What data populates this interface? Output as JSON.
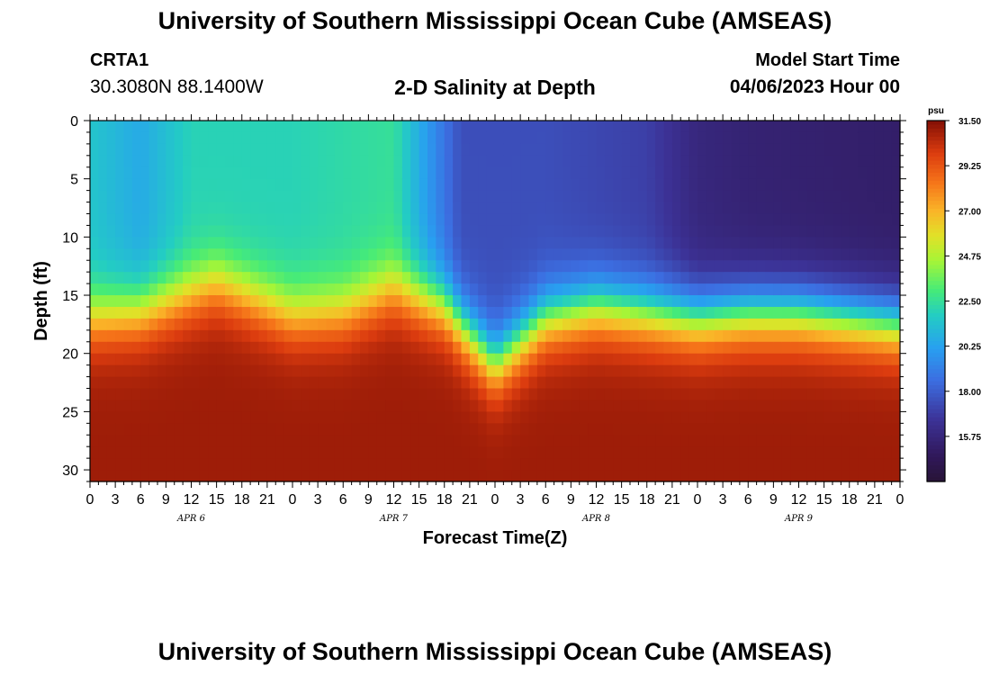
{
  "header": {
    "title": "University of Southern Mississippi Ocean Cube (AMSEAS)",
    "station_id": "CRTA1",
    "coords": "30.3080N  88.1400W",
    "subtitle": "2-D Salinity at Depth",
    "model_label": "Model Start Time",
    "model_start": "04/06/2023 Hour 00"
  },
  "footer": {
    "title": "University of Southern Mississippi Ocean Cube (AMSEAS)"
  },
  "chart_data": {
    "type": "heatmap",
    "title": "2-D Salinity at Depth",
    "xlabel": "Forecast Time(Z)",
    "ylabel": "Depth (ft)",
    "x_range_hours": [
      0,
      96
    ],
    "y_range_ft": [
      0,
      31
    ],
    "x_tick_labels": [
      "0",
      "3",
      "6",
      "9",
      "12",
      "15",
      "18",
      "21",
      "0",
      "3",
      "6",
      "9",
      "12",
      "15",
      "18",
      "21",
      "0",
      "3",
      "6",
      "9",
      "12",
      "15",
      "18",
      "21",
      "0",
      "3",
      "6",
      "9",
      "12",
      "15",
      "18",
      "21",
      "0"
    ],
    "x_tick_step_hours": 3,
    "y_ticks": [
      0,
      5,
      10,
      15,
      20,
      25,
      30
    ],
    "date_labels": [
      {
        "label": "APR 6",
        "hour": 12
      },
      {
        "label": "APR 7",
        "hour": 36
      },
      {
        "label": "APR 8",
        "hour": 60
      },
      {
        "label": "APR 9",
        "hour": 84
      }
    ],
    "colorbar": {
      "unit": "psu",
      "min": 13.5,
      "max": 31.5,
      "ticks": [
        "31.50",
        "29.25",
        "27.00",
        "24.75",
        "22.50",
        "20.25",
        "18.00",
        "15.75"
      ]
    },
    "value_range": [
      13.5,
      31.5
    ],
    "surface_salinity_psu": [
      {
        "hour": 0,
        "value": 21.5
      },
      {
        "hour": 6,
        "value": 20.5
      },
      {
        "hour": 12,
        "value": 22.0
      },
      {
        "hour": 24,
        "value": 22.0
      },
      {
        "hour": 36,
        "value": 22.5
      },
      {
        "hour": 40,
        "value": 20.0
      },
      {
        "hour": 44,
        "value": 17.5
      },
      {
        "hour": 54,
        "value": 17.5
      },
      {
        "hour": 66,
        "value": 17.0
      },
      {
        "hour": 72,
        "value": 15.8
      },
      {
        "hour": 78,
        "value": 15.5
      },
      {
        "hour": 90,
        "value": 15.3
      },
      {
        "hour": 96,
        "value": 15.2
      }
    ],
    "halocline_depth_ft": [
      {
        "hour": 0,
        "value": 17.0
      },
      {
        "hour": 6,
        "value": 16.5
      },
      {
        "hour": 15,
        "value": 14.0
      },
      {
        "hour": 24,
        "value": 16.8
      },
      {
        "hour": 30,
        "value": 16.5
      },
      {
        "hour": 36,
        "value": 14.5
      },
      {
        "hour": 42,
        "value": 16.0
      },
      {
        "hour": 48,
        "value": 21.0
      },
      {
        "hour": 54,
        "value": 17.0
      },
      {
        "hour": 60,
        "value": 16.0
      },
      {
        "hour": 72,
        "value": 17.0
      },
      {
        "hour": 78,
        "value": 16.5
      },
      {
        "hour": 84,
        "value": 16.5
      },
      {
        "hour": 96,
        "value": 17.5
      }
    ],
    "bottom_salinity_psu": 31.0
  }
}
